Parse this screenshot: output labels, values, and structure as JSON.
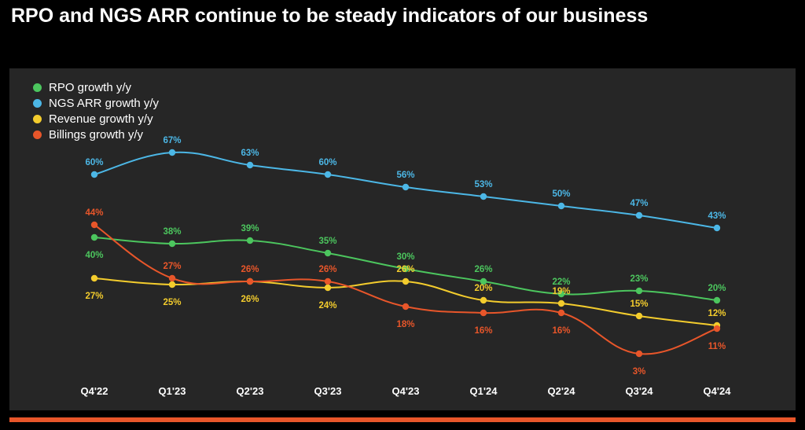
{
  "title": "RPO and NGS ARR continue to be steady indicators of our business",
  "chart_data": {
    "type": "line",
    "categories": [
      "Q4'22",
      "Q1'23",
      "Q2'23",
      "Q3'23",
      "Q4'23",
      "Q1'24",
      "Q2'24",
      "Q3'24",
      "Q4'24"
    ],
    "ylabel": "",
    "xlabel": "",
    "ylim": [
      0,
      70
    ],
    "grid": false,
    "legend_position": "top-left",
    "series": [
      {
        "name": "RPO growth y/y",
        "color": "#4cc65e",
        "values": [
          40,
          38,
          39,
          35,
          30,
          26,
          22,
          23,
          20
        ],
        "labels": [
          "40%",
          "38%",
          "39%",
          "35%",
          "30%",
          "26%",
          "22%",
          "23%",
          "20%"
        ]
      },
      {
        "name": "NGS ARR growth y/y",
        "color": "#4cb7e6",
        "values": [
          60,
          67,
          63,
          60,
          56,
          53,
          50,
          47,
          43
        ],
        "labels": [
          "60%",
          "67%",
          "63%",
          "60%",
          "56%",
          "53%",
          "50%",
          "47%",
          "43%"
        ]
      },
      {
        "name": "Revenue growth y/y",
        "color": "#f3cc2d",
        "values": [
          27,
          25,
          26,
          24,
          26,
          20,
          19,
          15,
          12
        ],
        "labels": [
          "27%",
          "25%",
          "26%",
          "24%",
          "26%",
          "20%",
          "19%",
          "15%",
          "12%"
        ]
      },
      {
        "name": "Billings growth y/y",
        "color": "#e8562a",
        "values": [
          44,
          27,
          26,
          26,
          18,
          16,
          16,
          3,
          11
        ],
        "labels": [
          "44%",
          "27%",
          "26%",
          "26%",
          "18%",
          "16%",
          "16%",
          "3%",
          "11%"
        ]
      }
    ]
  }
}
